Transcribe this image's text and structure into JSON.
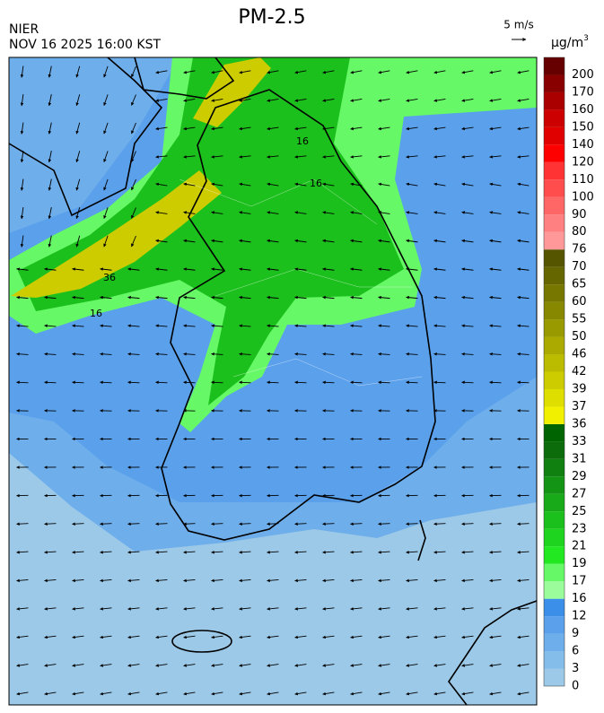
{
  "header": {
    "title": "PM-2.5",
    "agency": "NIER",
    "datetime": "NOV 16 2025 16:00 KST",
    "wind_scale": "5 m/s"
  },
  "colorbar": {
    "unit": {
      "base": "μg/m",
      "exponent": "3"
    },
    "labels": [
      0,
      3,
      6,
      9,
      12,
      16,
      17,
      19,
      21,
      23,
      25,
      27,
      29,
      31,
      33,
      36,
      37,
      39,
      42,
      46,
      50,
      55,
      60,
      65,
      70,
      76,
      80,
      90,
      100,
      110,
      120,
      140,
      150,
      160,
      170,
      200
    ],
    "colors": [
      "#9cc9e8",
      "#84bcea",
      "#6eaeeb",
      "#5aa0eb",
      "#3c8fe8",
      "#9afc9a",
      "#66f866",
      "#22e822",
      "#1ed41e",
      "#1cc01c",
      "#18aa18",
      "#149414",
      "#108010",
      "#0c6c0c",
      "#006400",
      "#f0f000",
      "#dede00",
      "#cccc00",
      "#bbbb00",
      "#aaaa00",
      "#999900",
      "#888800",
      "#777700",
      "#666600",
      "#555500",
      "#ff9999",
      "#ff8080",
      "#ff6666",
      "#ff4c4c",
      "#ff3333",
      "#ff0000",
      "#e00000",
      "#cc0000",
      "#aa0000",
      "#880000",
      "#660000"
    ]
  },
  "map": {
    "contour_labels": [
      "36",
      "16",
      "16",
      "16"
    ]
  }
}
